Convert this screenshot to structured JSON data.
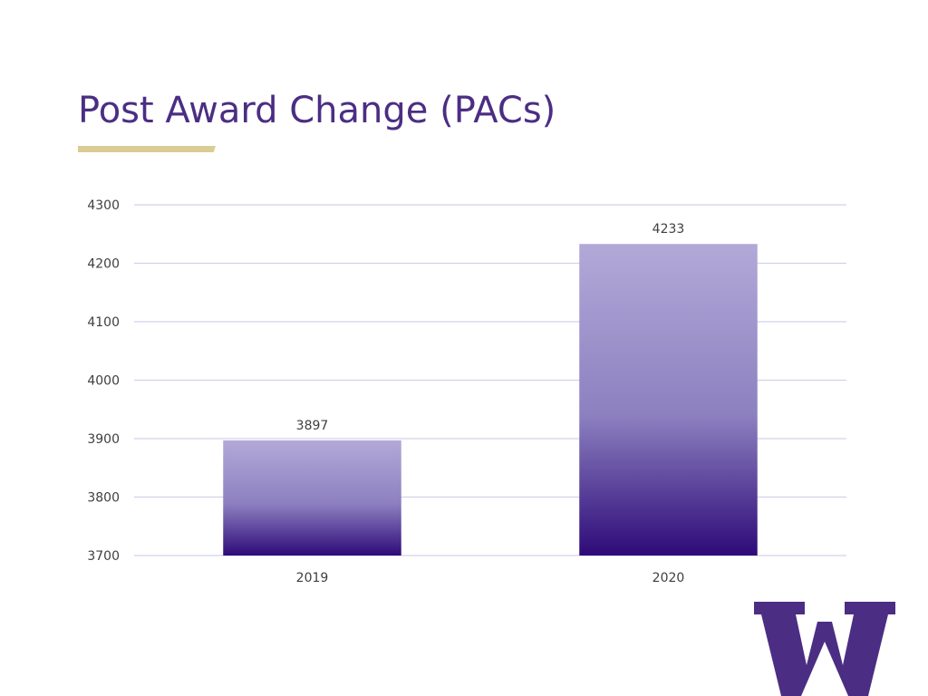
{
  "slide": {
    "title": "Post Award Change (PACs)",
    "title_color": "#4b2e83",
    "accent_color": "#d9cc95"
  },
  "chart_data": {
    "type": "bar",
    "title": "",
    "xlabel": "",
    "ylabel": "",
    "categories": [
      "2019",
      "2020"
    ],
    "values": [
      3897,
      4233
    ],
    "data_labels": [
      "3897",
      "4233"
    ],
    "ylim": [
      3700,
      4300
    ],
    "y_ticks": [
      "3700",
      "3800",
      "3900",
      "4000",
      "4100",
      "4200",
      "4300"
    ],
    "grid": true,
    "legend": "none",
    "bar_gradient": {
      "top": "#b3a9d8",
      "bottom": "#2e0a78"
    }
  },
  "logo": {
    "icon": "w-logo-icon",
    "color": "#4b2e83",
    "text": "W"
  }
}
